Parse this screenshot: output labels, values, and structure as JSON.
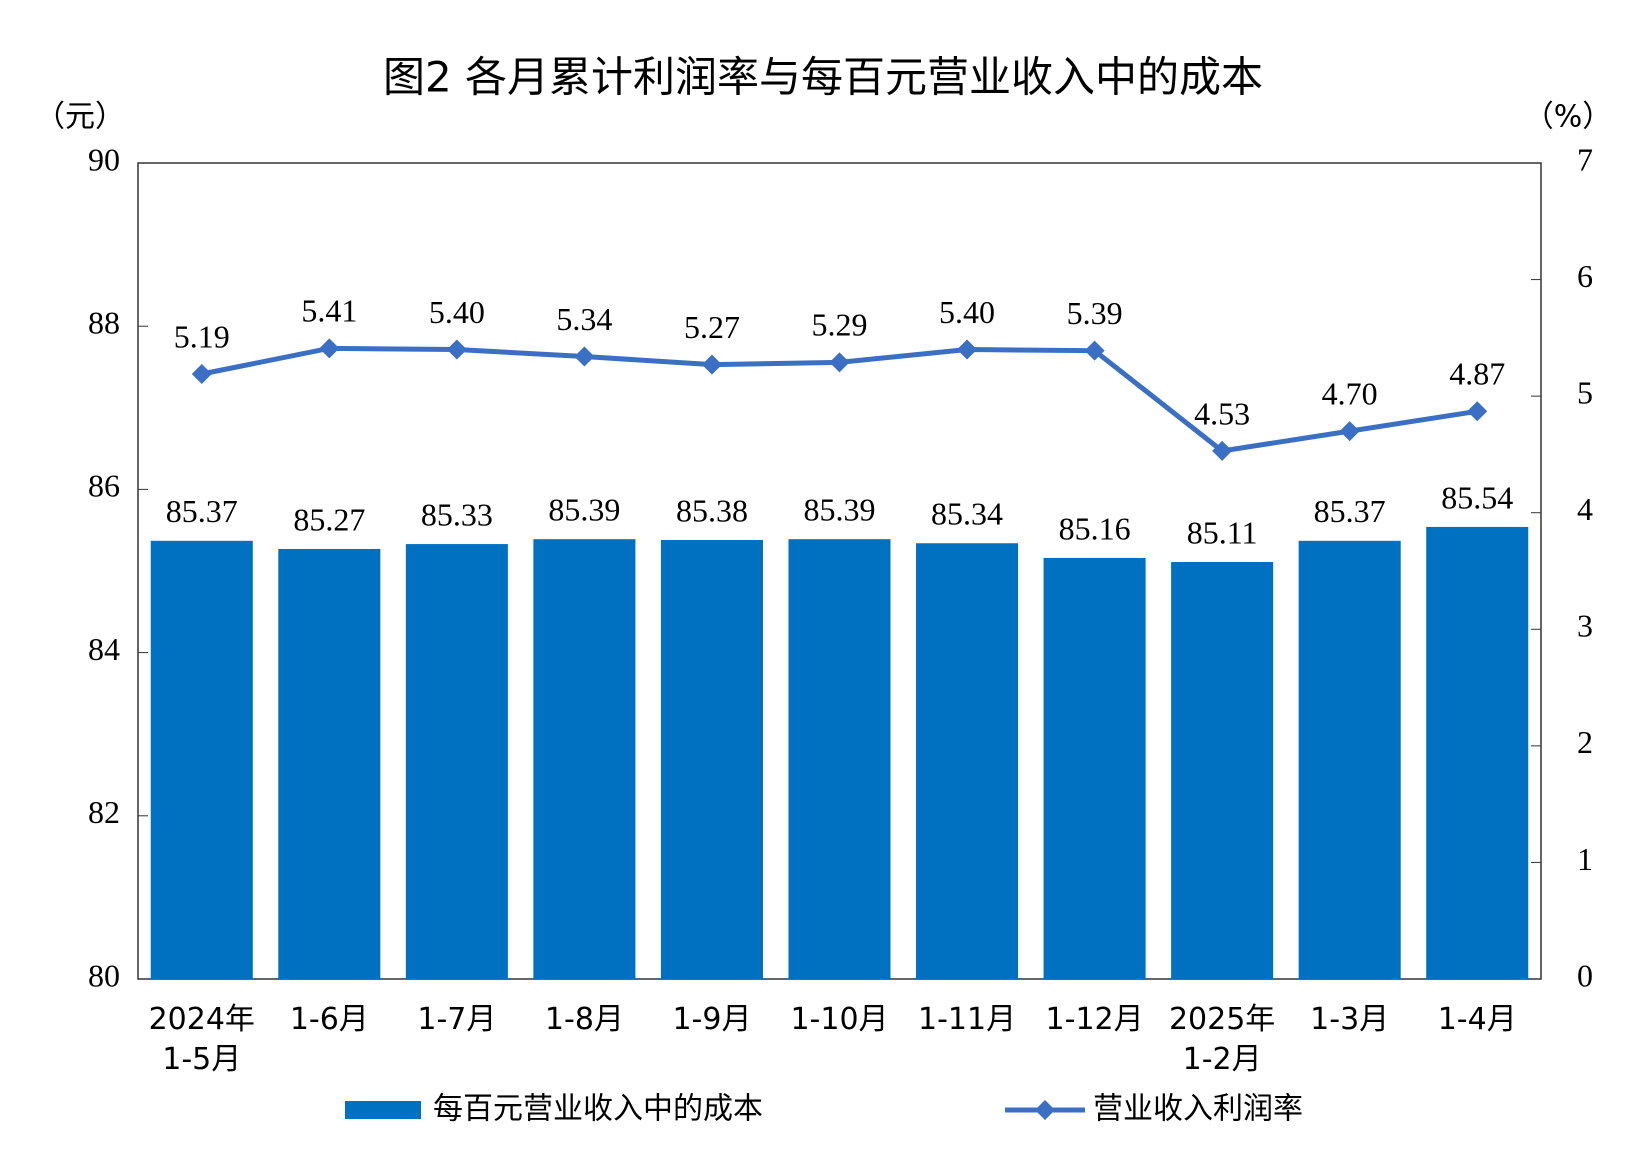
{
  "chart_data": {
    "type": "bar",
    "title": "图2  各月累计利润率与每百元营业收入中的成本",
    "y_label": "（元）",
    "y2_label": "（%）",
    "categories": [
      "2024年\n1-5月",
      "1-6月",
      "1-7月",
      "1-8月",
      "1-9月",
      "1-10月",
      "1-11月",
      "1-12月",
      "2025年\n1-2月",
      "1-3月",
      "1-4月"
    ],
    "series": [
      {
        "name": "每百元营业收入中的成本",
        "type": "bar",
        "color": "#0070c0",
        "values": [
          85.37,
          85.27,
          85.33,
          85.39,
          85.38,
          85.39,
          85.34,
          85.16,
          85.11,
          85.37,
          85.54
        ]
      },
      {
        "name": "营业收入利润率",
        "type": "line",
        "axis": "y2",
        "color": "#3a6fc4",
        "values": [
          5.19,
          5.41,
          5.4,
          5.34,
          5.27,
          5.29,
          5.4,
          5.39,
          4.53,
          4.7,
          4.87
        ],
        "value_labels": [
          "5.19",
          "5.41",
          "5.40",
          "5.34",
          "5.27",
          "5.29",
          "5.40",
          "5.39",
          "4.53",
          "4.70",
          "4.87"
        ]
      }
    ],
    "ylim": [
      80,
      90
    ],
    "yticks": [
      80,
      82,
      84,
      86,
      88,
      90
    ],
    "y2lim": [
      0,
      7
    ],
    "y2ticks": [
      0,
      1,
      2,
      3,
      4,
      5,
      6,
      7
    ],
    "value_labels_bar": [
      "85.37",
      "85.27",
      "85.33",
      "85.39",
      "85.38",
      "85.39",
      "85.34",
      "85.16",
      "85.11",
      "85.37",
      "85.54"
    ],
    "legend": "bottom"
  }
}
